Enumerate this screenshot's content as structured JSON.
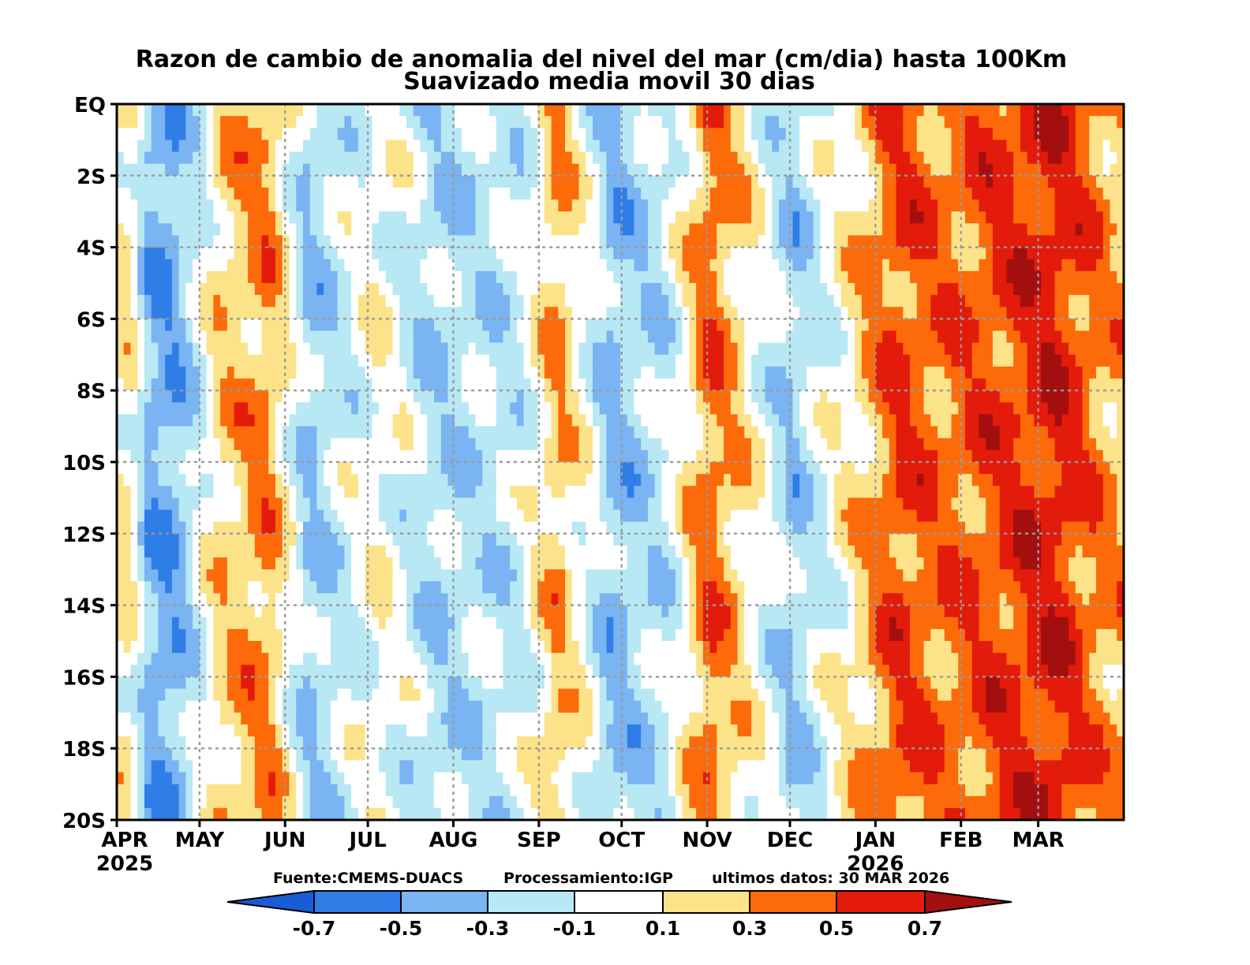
{
  "chart_data": {
    "type": "heatmap",
    "title": "Razon de cambio de anomalia del nivel del mar (cm/dia) hasta 100Km",
    "subtitle": "Suavizado media movil 30 dias",
    "xlabel": "",
    "ylabel": "",
    "x_ticks": [
      {
        "label": "APR",
        "year": "2025",
        "day": 0
      },
      {
        "label": "MAY",
        "year": "",
        "day": 30
      },
      {
        "label": "JUN",
        "year": "",
        "day": 61
      },
      {
        "label": "JUL",
        "year": "",
        "day": 91
      },
      {
        "label": "AUG",
        "year": "",
        "day": 122
      },
      {
        "label": "SEP",
        "year": "",
        "day": 153
      },
      {
        "label": "OCT",
        "year": "",
        "day": 183
      },
      {
        "label": "NOV",
        "year": "",
        "day": 214
      },
      {
        "label": "DEC",
        "year": "",
        "day": 244
      },
      {
        "label": "JAN",
        "year": "2026",
        "day": 275
      },
      {
        "label": "FEB",
        "year": "",
        "day": 306
      },
      {
        "label": "MAR",
        "year": "",
        "day": 334
      }
    ],
    "x_range_days": [
      0,
      365
    ],
    "y_ticks": [
      {
        "label": "EQ",
        "lat": 0
      },
      {
        "label": "2S",
        "lat": -2
      },
      {
        "label": "4S",
        "lat": -4
      },
      {
        "label": "6S",
        "lat": -6
      },
      {
        "label": "8S",
        "lat": -8
      },
      {
        "label": "10S",
        "lat": -10
      },
      {
        "label": "12S",
        "lat": -12
      },
      {
        "label": "14S",
        "lat": -14
      },
      {
        "label": "16S",
        "lat": -16
      },
      {
        "label": "18S",
        "lat": -18
      },
      {
        "label": "20S",
        "lat": -20
      }
    ],
    "ylim": [
      -20,
      0
    ],
    "grid": true,
    "contour_levels": [
      -0.7,
      -0.5,
      -0.3,
      -0.1,
      0.1,
      0.3,
      0.5,
      0.7
    ],
    "colorbar": {
      "labels": [
        "-0.7",
        "-0.5",
        "-0.3",
        "-0.1",
        "0.1",
        "0.3",
        "0.5",
        "0.7"
      ],
      "colors": [
        "#1a5cd8",
        "#2f7ee8",
        "#7ab4f2",
        "#b7e8f4",
        "#ffffff",
        "#fce38a",
        "#fc6a0a",
        "#e31b0b",
        "#a30f0f"
      ]
    },
    "time_lon_approx": [
      {
        "day": 5,
        "v": 0.1
      },
      {
        "day": 12,
        "v": -0.4
      },
      {
        "day": 20,
        "v": -0.45
      },
      {
        "day": 38,
        "v": 0.2
      },
      {
        "day": 55,
        "v": 0.35
      },
      {
        "day": 70,
        "v": -0.3
      },
      {
        "day": 95,
        "v": 0.05
      },
      {
        "day": 115,
        "v": -0.25
      },
      {
        "day": 145,
        "v": -0.15
      },
      {
        "day": 160,
        "v": 0.3
      },
      {
        "day": 180,
        "v": -0.35
      },
      {
        "day": 200,
        "v": -0.15
      },
      {
        "day": 215,
        "v": 0.45
      },
      {
        "day": 245,
        "v": -0.3
      },
      {
        "day": 262,
        "v": 0.05
      },
      {
        "day": 283,
        "v": 0.5
      },
      {
        "day": 300,
        "v": 0.4
      },
      {
        "day": 320,
        "v": 0.5
      },
      {
        "day": 340,
        "v": 0.62
      },
      {
        "day": 360,
        "v": 0.3
      }
    ],
    "source_note": "Fuente:CMEMS-DUACS",
    "processing_note": "Processamiento:IGP",
    "last_data_note": "ultimos datos: 30 MAR 2026"
  }
}
